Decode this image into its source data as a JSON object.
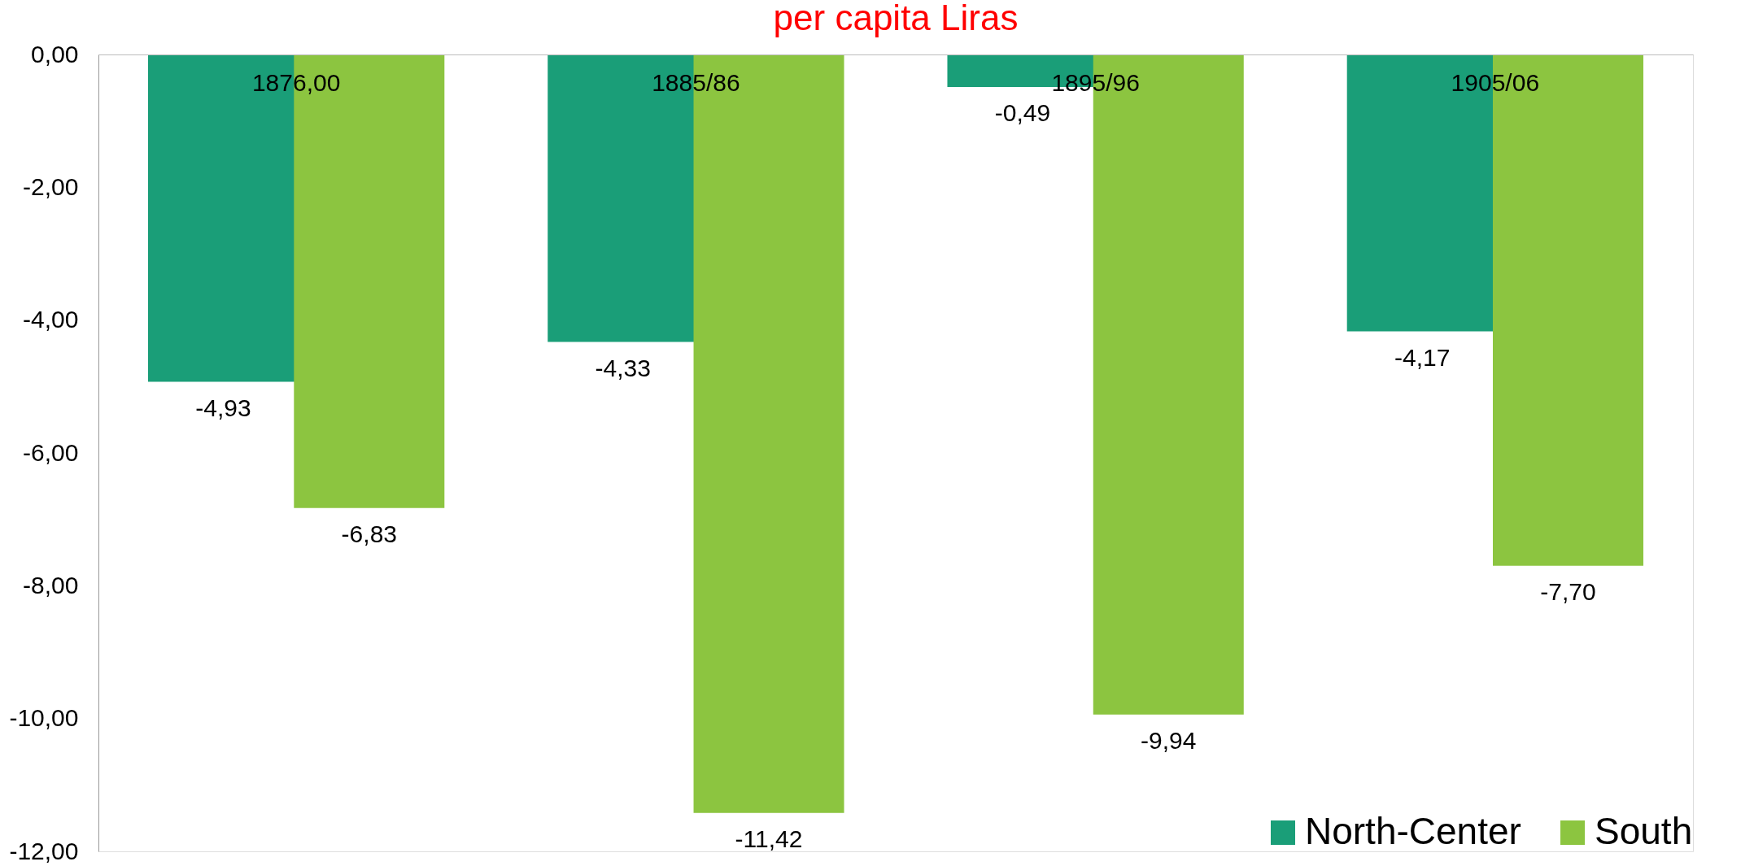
{
  "chart_data": {
    "type": "bar",
    "title": "per capita Liras",
    "categories": [
      "1876,00",
      "1885/86",
      "1895/96",
      "1905/06"
    ],
    "series": [
      {
        "name": "North-Center",
        "color": "#1a9e78",
        "values": [
          -4.93,
          -4.33,
          -0.49,
          -4.17
        ],
        "value_labels": [
          "-4,93",
          "-4,33",
          "-0,49",
          "-4,17"
        ]
      },
      {
        "name": "South",
        "color": "#8cc540",
        "values": [
          -6.83,
          -11.42,
          -9.94,
          -7.7
        ],
        "value_labels": [
          "-6,83",
          "-11,42",
          "-9,94",
          "-7,70"
        ]
      }
    ],
    "ylim": [
      -12,
      0
    ],
    "yticks": [
      {
        "value": 0,
        "label": "0,00"
      },
      {
        "value": -2,
        "label": "-2,00"
      },
      {
        "value": -4,
        "label": "-4,00"
      },
      {
        "value": -6,
        "label": "-6,00"
      },
      {
        "value": -8,
        "label": "-8,00"
      },
      {
        "value": -10,
        "label": "-10,00"
      },
      {
        "value": -12,
        "label": "-12,00"
      }
    ],
    "grid": false,
    "legend": "bottom right"
  }
}
